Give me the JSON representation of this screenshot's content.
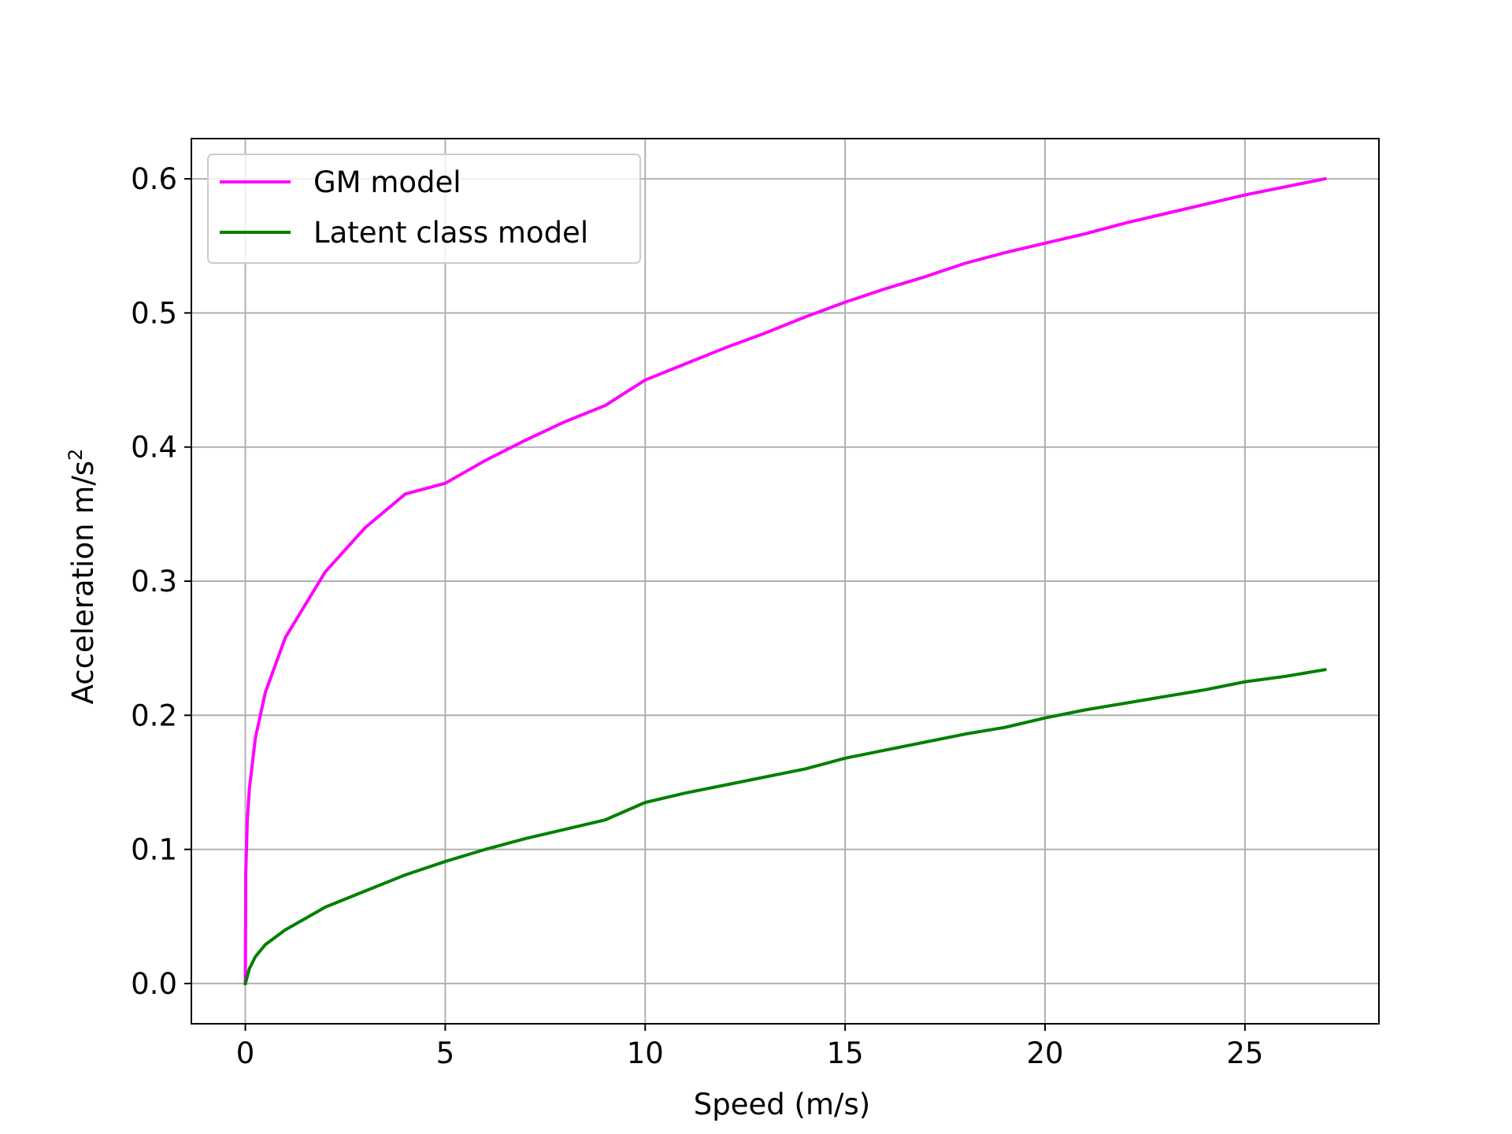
{
  "chart_data": {
    "type": "line",
    "title": "",
    "xlabel": "Speed (m/s)",
    "ylabel_main": "Acceleration m/s",
    "ylabel_sup": "2",
    "xlim": [
      -1.35,
      28.35
    ],
    "ylim": [
      -0.03,
      0.63
    ],
    "xticks": [
      0,
      5,
      10,
      15,
      20,
      25
    ],
    "xtick_labels": [
      "0",
      "5",
      "10",
      "15",
      "20",
      "25"
    ],
    "yticks": [
      0.0,
      0.1,
      0.2,
      0.3,
      0.4,
      0.5,
      0.6
    ],
    "ytick_labels": [
      "0.0",
      "0.1",
      "0.2",
      "0.3",
      "0.4",
      "0.5",
      "0.6"
    ],
    "grid": true,
    "legend_position": "upper-left",
    "colors": {
      "grid": "#b0b0b0",
      "axes": "#000000",
      "legend_border": "#cccccc"
    },
    "series": [
      {
        "name": "GM model",
        "color": "#ff00ff",
        "x": [
          0,
          0.01,
          0.05,
          0.1,
          0.25,
          0.5,
          1,
          2,
          3,
          4,
          5,
          6,
          7,
          8,
          9,
          10,
          11,
          12,
          13,
          14,
          15,
          16,
          17,
          18,
          19,
          20,
          21,
          22,
          23,
          24,
          25,
          26,
          27
        ],
        "y": [
          0.0,
          0.082,
          0.122,
          0.145,
          0.183,
          0.217,
          0.258,
          0.307,
          0.34,
          0.365,
          0.373,
          0.39,
          0.405,
          0.419,
          0.431,
          0.45,
          0.462,
          0.474,
          0.485,
          0.497,
          0.508,
          0.518,
          0.527,
          0.537,
          0.545,
          0.552,
          0.559,
          0.567,
          0.574,
          0.581,
          0.588,
          0.594,
          0.6
        ]
      },
      {
        "name": "Latent class model",
        "color": "#008000",
        "x": [
          0,
          0.1,
          0.25,
          0.5,
          1,
          2,
          3,
          4,
          5,
          6,
          7,
          8,
          9,
          10,
          11,
          12,
          13,
          14,
          15,
          16,
          17,
          18,
          19,
          20,
          21,
          22,
          23,
          24,
          25,
          26,
          27
        ],
        "y": [
          0.0,
          0.011,
          0.02,
          0.029,
          0.04,
          0.057,
          0.069,
          0.081,
          0.091,
          0.1,
          0.108,
          0.115,
          0.122,
          0.135,
          0.142,
          0.148,
          0.154,
          0.16,
          0.168,
          0.174,
          0.18,
          0.186,
          0.191,
          0.198,
          0.204,
          0.209,
          0.214,
          0.219,
          0.225,
          0.229,
          0.234
        ]
      }
    ]
  }
}
